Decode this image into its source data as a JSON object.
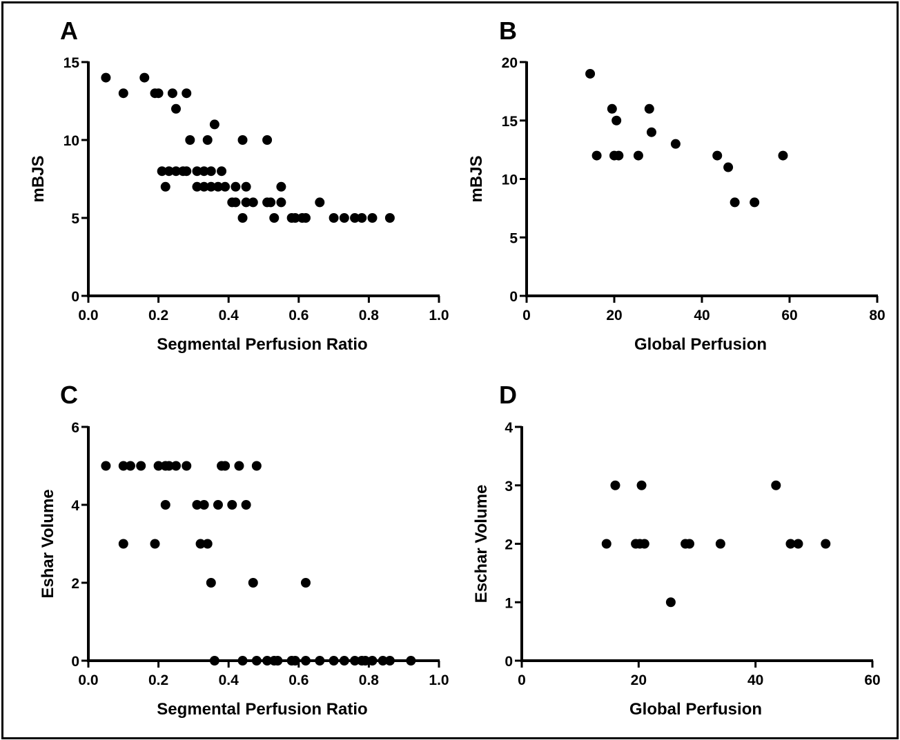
{
  "colors": {
    "marker": "#000000",
    "axis": "#000000",
    "background": "#ffffff"
  },
  "chart_data": [
    {
      "panel": "A",
      "type": "scatter",
      "xlabel": "Segmental Perfusion Ratio",
      "ylabel": "mBJS",
      "xlim": [
        0,
        1.0
      ],
      "ylim": [
        0,
        15
      ],
      "xticks": [
        "0.0",
        "0.2",
        "0.4",
        "0.6",
        "0.8",
        "1.0"
      ],
      "yticks": [
        "0",
        "5",
        "10",
        "15"
      ],
      "grid": false,
      "points": [
        [
          0.05,
          14
        ],
        [
          0.1,
          13
        ],
        [
          0.16,
          14
        ],
        [
          0.19,
          13
        ],
        [
          0.2,
          13
        ],
        [
          0.24,
          13
        ],
        [
          0.28,
          13
        ],
        [
          0.25,
          12
        ],
        [
          0.36,
          11
        ],
        [
          0.29,
          10
        ],
        [
          0.34,
          10
        ],
        [
          0.44,
          10
        ],
        [
          0.51,
          10
        ],
        [
          0.21,
          8
        ],
        [
          0.23,
          8
        ],
        [
          0.25,
          8
        ],
        [
          0.27,
          8
        ],
        [
          0.28,
          8
        ],
        [
          0.31,
          8
        ],
        [
          0.33,
          8
        ],
        [
          0.35,
          8
        ],
        [
          0.38,
          8
        ],
        [
          0.22,
          7
        ],
        [
          0.31,
          7
        ],
        [
          0.33,
          7
        ],
        [
          0.35,
          7
        ],
        [
          0.37,
          7
        ],
        [
          0.39,
          7
        ],
        [
          0.42,
          7
        ],
        [
          0.45,
          7
        ],
        [
          0.55,
          7
        ],
        [
          0.41,
          6
        ],
        [
          0.42,
          6
        ],
        [
          0.45,
          6
        ],
        [
          0.47,
          6
        ],
        [
          0.51,
          6
        ],
        [
          0.52,
          6
        ],
        [
          0.55,
          6
        ],
        [
          0.66,
          6
        ],
        [
          0.44,
          5
        ],
        [
          0.53,
          5
        ],
        [
          0.58,
          5
        ],
        [
          0.59,
          5
        ],
        [
          0.61,
          5
        ],
        [
          0.62,
          5
        ],
        [
          0.7,
          5
        ],
        [
          0.73,
          5
        ],
        [
          0.76,
          5
        ],
        [
          0.78,
          5
        ],
        [
          0.81,
          5
        ],
        [
          0.86,
          5
        ]
      ]
    },
    {
      "panel": "B",
      "type": "scatter",
      "xlabel": "Global Perfusion",
      "ylabel": "mBJS",
      "xlim": [
        0,
        80
      ],
      "ylim": [
        0,
        20
      ],
      "xticks": [
        "0",
        "20",
        "40",
        "60",
        "80"
      ],
      "yticks": [
        "0",
        "5",
        "10",
        "15",
        "20"
      ],
      "grid": false,
      "points": [
        [
          14.5,
          19
        ],
        [
          19.5,
          16
        ],
        [
          28,
          16
        ],
        [
          20.5,
          15
        ],
        [
          28.5,
          14
        ],
        [
          34,
          13
        ],
        [
          16,
          12
        ],
        [
          20,
          12
        ],
        [
          21,
          12
        ],
        [
          25.5,
          12
        ],
        [
          43.5,
          12
        ],
        [
          58.5,
          12
        ],
        [
          46,
          11
        ],
        [
          47.5,
          8
        ],
        [
          52,
          8
        ]
      ]
    },
    {
      "panel": "C",
      "type": "scatter",
      "xlabel": "Segmental Perfusion Ratio",
      "ylabel": "Eshar Volume",
      "xlim": [
        0,
        1.0
      ],
      "ylim": [
        0,
        6
      ],
      "xticks": [
        "0.0",
        "0.2",
        "0.4",
        "0.6",
        "0.8",
        "1.0"
      ],
      "yticks": [
        "0",
        "2",
        "4",
        "6"
      ],
      "grid": false,
      "points": [
        [
          0.05,
          5
        ],
        [
          0.1,
          5
        ],
        [
          0.12,
          5
        ],
        [
          0.15,
          5
        ],
        [
          0.2,
          5
        ],
        [
          0.22,
          5
        ],
        [
          0.23,
          5
        ],
        [
          0.25,
          5
        ],
        [
          0.28,
          5
        ],
        [
          0.38,
          5
        ],
        [
          0.39,
          5
        ],
        [
          0.43,
          5
        ],
        [
          0.48,
          5
        ],
        [
          0.22,
          4
        ],
        [
          0.31,
          4
        ],
        [
          0.33,
          4
        ],
        [
          0.37,
          4
        ],
        [
          0.41,
          4
        ],
        [
          0.45,
          4
        ],
        [
          0.1,
          3
        ],
        [
          0.19,
          3
        ],
        [
          0.32,
          3
        ],
        [
          0.34,
          3
        ],
        [
          0.35,
          2
        ],
        [
          0.47,
          2
        ],
        [
          0.62,
          2
        ],
        [
          0.36,
          0
        ],
        [
          0.44,
          0
        ],
        [
          0.48,
          0
        ],
        [
          0.51,
          0
        ],
        [
          0.53,
          0
        ],
        [
          0.54,
          0
        ],
        [
          0.58,
          0
        ],
        [
          0.59,
          0
        ],
        [
          0.62,
          0
        ],
        [
          0.66,
          0
        ],
        [
          0.7,
          0
        ],
        [
          0.73,
          0
        ],
        [
          0.76,
          0
        ],
        [
          0.78,
          0
        ],
        [
          0.79,
          0
        ],
        [
          0.81,
          0
        ],
        [
          0.84,
          0
        ],
        [
          0.86,
          0
        ],
        [
          0.92,
          0
        ]
      ]
    },
    {
      "panel": "D",
      "type": "scatter",
      "xlabel": "Global Perfusion",
      "ylabel": "Eschar Volume",
      "xlim": [
        0,
        60
      ],
      "ylim": [
        0,
        4
      ],
      "xticks": [
        "0",
        "20",
        "40",
        "60"
      ],
      "yticks": [
        "0",
        "1",
        "2",
        "3",
        "4"
      ],
      "grid": false,
      "points": [
        [
          16,
          3
        ],
        [
          20.5,
          3
        ],
        [
          43.5,
          3
        ],
        [
          14.5,
          2
        ],
        [
          19.5,
          2
        ],
        [
          20.2,
          2
        ],
        [
          21,
          2
        ],
        [
          28,
          2
        ],
        [
          28.7,
          2
        ],
        [
          34,
          2
        ],
        [
          46,
          2
        ],
        [
          47.3,
          2
        ],
        [
          52,
          2
        ],
        [
          25.5,
          1
        ]
      ]
    }
  ]
}
